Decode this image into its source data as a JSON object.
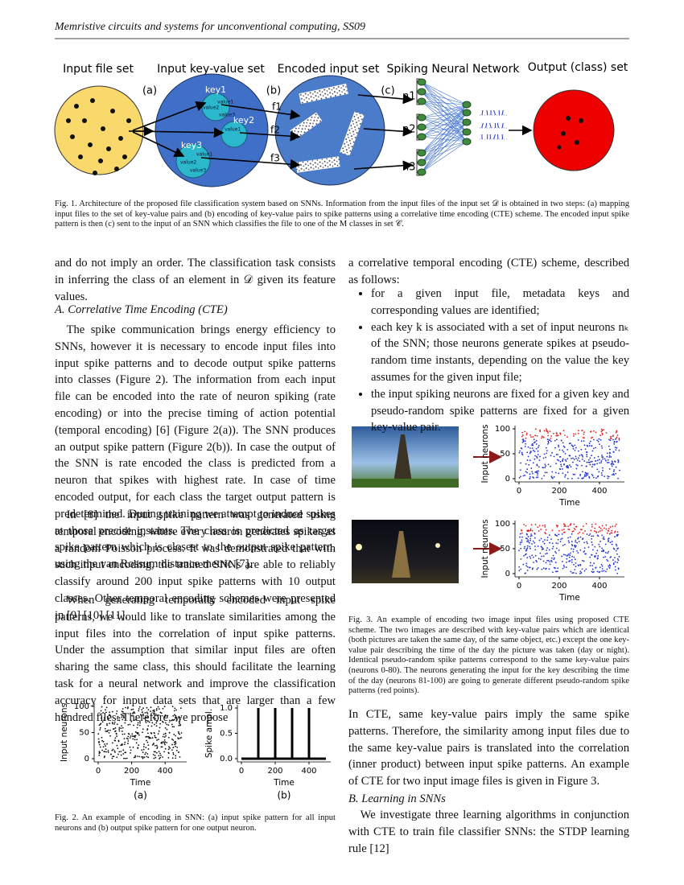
{
  "header": {
    "running_title": "Memristive circuits and systems for unconventional computing, SS09"
  },
  "figure1": {
    "stage_titles": [
      "Input file set",
      "Input key-value set",
      "Encoded input set",
      "Spiking Neural Network",
      "Output (class) set"
    ],
    "step_labels": [
      "(a)",
      "(b)",
      "(c)"
    ],
    "keys": [
      {
        "name": "key1",
        "values": [
          "value1",
          "value2",
          "value3"
        ]
      },
      {
        "name": "key2",
        "values": [
          "value1"
        ]
      },
      {
        "name": "key3",
        "values": [
          "value1",
          "value2",
          "value3"
        ]
      }
    ],
    "features": [
      "f1",
      "f2",
      "f3"
    ],
    "neuron_groups": [
      "n1",
      "n2",
      "n3"
    ],
    "caption": "Fig. 1.  Architecture of the proposed file classification system based on SNNs. Information from the input files of the input set 𝒟 is obtained in two steps: (a) mapping input files to the set of key-value pairs and (b) encoding of key-value pairs to spike patterns using a correlative time encoding (CTE) scheme. The encoded input spike pattern is then (c) sent to the input of an SNN which classifies the file to one of the M classes in set 𝒞."
  },
  "left_column": {
    "paragraph_1": "and do not imply an order. The classification task consists in inferring the class of an element in 𝒟 given its feature values.",
    "section_a_heading": "A. Correlative Time Encoding (CTE)",
    "paragraph_2": "The spike communication brings energy efficiency to SNNs, however it is necessary to encode input files into input spike patterns and to decode output spike patterns into classes (Figure 2). The information from each input file can be encoded into the rate of neuron spiking (rate encoding) or into the precise timing of action potential (temporal encoding) [6] (Figure 2(a)). The SNN produces an output spike pattern (Figure 2(b)). In case the output of the SNN is rate encoded the class is predicted from a neuron that spikes with highest rate. In case of time encoded output, for each class the target output pattern is predetermined. During training we attempt to induce spikes at those precise instants. The class is predicted as target spike pattern which is closest to the output spike pattern, using the van Rossum distance metric [7].",
    "paragraph_3": "In [8] the input spike pattern was generated using temporal encoding, where every neuron generates spikes as a random Poisson process. It was demonstrated that with such input encoding, the trained SNNs are able to reliably classify around 200 input spike patterns with 10 output classes. Other temporal encoding schemes were presented in [9] [10] [11].",
    "paragraph_4": "When generating temporally encoded input spike patterns, we would like to translate similarities among the input files into the correlation of input spike patterns. Under the assumption that similar input files are often sharing the same class, this should facilitate the learning task for a neural network and improve the classification accuracy for input data sets that are larger than a few hundred files. Therefore, we propose"
  },
  "figure2": {
    "panel_a": {
      "type": "raster",
      "panel_label": "(a)",
      "xlabel": "Time",
      "ylabel": "Input neurons",
      "xlim": [
        0,
        500
      ],
      "ylim": [
        0,
        100
      ],
      "xticks": [
        0,
        200,
        400
      ],
      "yticks": [
        0,
        50,
        100
      ],
      "dot_color": "#111111"
    },
    "panel_b": {
      "type": "spikes",
      "panel_label": "(b)",
      "xlabel": "Time",
      "ylabel": "Spike ampl.",
      "xlim": [
        0,
        500
      ],
      "ylim": [
        0,
        1
      ],
      "xticks": [
        0,
        200,
        400
      ],
      "yticks": [
        {
          "value": 0,
          "label": "0.0"
        },
        {
          "value": 0.5,
          "label": "0.5"
        },
        {
          "value": 1,
          "label": "1.0"
        }
      ],
      "x": [
        100,
        200,
        300,
        400
      ],
      "values": [
        1,
        1,
        1,
        1
      ],
      "color": "#000000"
    },
    "caption": "Fig. 2.  An example of encoding in SNN: (a) input spike pattern for all input neurons and (b) output spike pattern for one output neuron."
  },
  "right_column": {
    "paragraph_1": "a correlative temporal encoding (CTE) scheme, described as follows:",
    "bullets": [
      "for a given input file, metadata keys and corresponding values are identified;",
      "each key k is associated with a set of input neurons nₖ of the SNN; those neurons generate spikes at pseudo-random time instants, depending on the value the key assumes for the given input file;",
      "the input spiking neurons are fixed for a given key and pseudo-random spike patterns are fixed for a given key-value pair."
    ],
    "paragraph_2": "In CTE, same key-value pairs imply the same spike patterns. Therefore, the similarity among input files due to the same key-value pairs is translated into the correlation (inner product) between input spike patterns. An example of CTE for two input image files is given in Figure 3.",
    "section_b_heading": "B. Learning in SNNs",
    "paragraph_3": "We investigate three learning algorithms in conjunction with CTE to train file classifier SNNs: the STDP learning rule [12]"
  },
  "figure3": {
    "panel_day": {
      "type": "raster",
      "xlabel": "Time",
      "ylabel": "Input neurons",
      "xlim": [
        0,
        500
      ],
      "ylim": [
        0,
        100
      ],
      "xticks": [
        0,
        200,
        400
      ],
      "yticks": [
        0,
        50,
        100
      ],
      "dot_color": "#2233cc",
      "highlight_color": "#e02020"
    },
    "panel_night": {
      "type": "raster",
      "xlabel": "Time",
      "ylabel": "Input neurons",
      "xlim": [
        0,
        500
      ],
      "ylim": [
        0,
        100
      ],
      "xticks": [
        0,
        200,
        400
      ],
      "yticks": [
        0,
        50,
        100
      ],
      "dot_color": "#2233cc",
      "highlight_color": "#e02020"
    },
    "caption": "Fig. 3.  An example of encoding two image input files using proposed CTE scheme. The two images are described with key-value pairs which are identical (both pictures are taken the same day, of the same object, etc.) except the one key-value pair describing the time of the day the picture was taken (day or night). Identical pseudo-random spike patterns correspond to the same key-value pairs (neurons 0-80). The neurons generating the input for the key describing the time of the day (neurons 81-100) are going to generate different pseudo-random spike patterns (red points)."
  }
}
